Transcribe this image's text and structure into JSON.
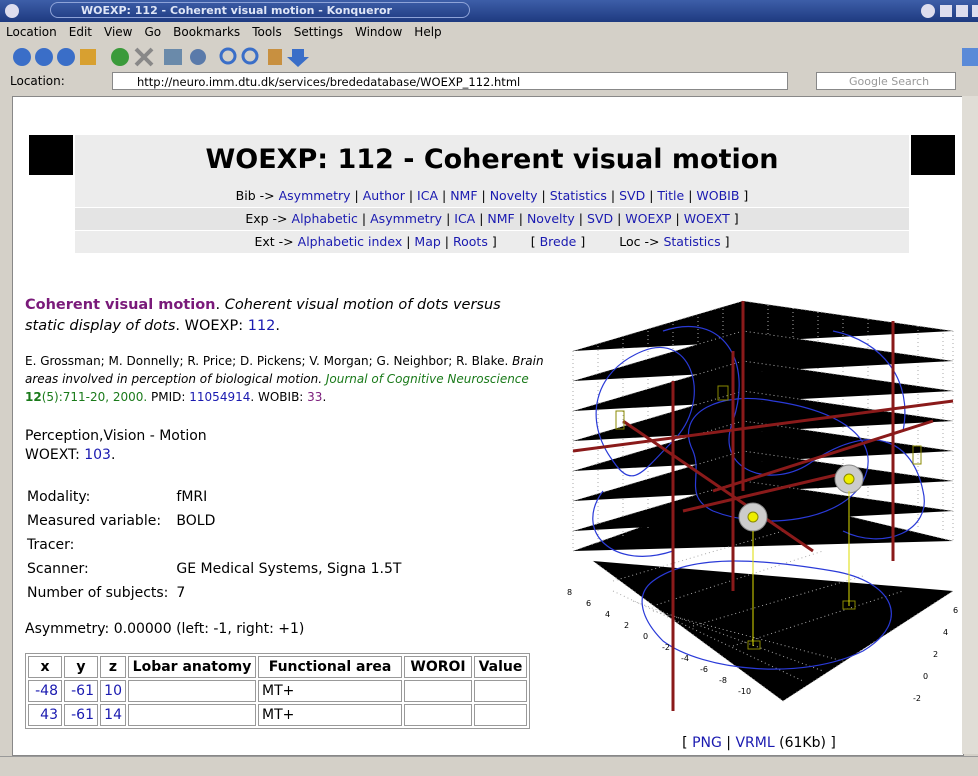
{
  "window": {
    "title": "WOEXP: 112 - Coherent visual motion - Konqueror",
    "menu": [
      "Location",
      "Edit",
      "View",
      "Go",
      "Bookmarks",
      "Tools",
      "Settings",
      "Window",
      "Help"
    ],
    "location_label": "Location:",
    "url": "http://neuro.imm.dtu.dk/services/brededatabase/WOEXP_112.html",
    "search_placeholder": "Google Search"
  },
  "page": {
    "heading": "WOEXP: 112 - Coherent visual motion",
    "nav": {
      "separator": "|",
      "rows": [
        [
          {
            "prefix": "Bib ->",
            "links": [
              "Asymmetry",
              "Author",
              "ICA",
              "NMF",
              "Novelty",
              "Statistics",
              "SVD",
              "Title",
              "WOBIB"
            ],
            "suffix": "]"
          }
        ],
        [
          {
            "prefix": "Exp ->",
            "links": [
              "Alphabetic",
              "Asymmetry",
              "ICA",
              "NMF",
              "Novelty",
              "SVD",
              "WOEXP",
              "WOEXT"
            ],
            "suffix": "]"
          }
        ],
        [
          {
            "prefix": "Ext ->",
            "links": [
              "Alphabetic index",
              "Map",
              "Roots"
            ],
            "suffix": "]"
          },
          {
            "prefix": "[",
            "links": [
              "Brede"
            ],
            "suffix": "]"
          },
          {
            "prefix": "Loc ->",
            "links": [
              "Statistics"
            ],
            "suffix": "]"
          }
        ]
      ]
    },
    "description": [
      {
        "text": "Coherent visual motion",
        "style": "title"
      },
      {
        "text": ". "
      },
      {
        "text": "Coherent visual motion of dots versus static display of dots",
        "style": "italic"
      },
      {
        "text": ". WOEXP: "
      },
      {
        "text": "112",
        "style": "link"
      },
      {
        "text": "."
      }
    ],
    "reference": [
      {
        "text": "E. Grossman; M. Donnelly; R. Price; D. Pickens; V. Morgan; G. Neighbor; R. Blake. "
      },
      {
        "text": "Brain areas involved in perception of biological motion.",
        "style": "italic"
      },
      {
        "text": " "
      },
      {
        "text": "Journal of Cognitive Neuroscience",
        "style": "journal"
      },
      {
        "text": " "
      },
      {
        "text": "12",
        "style": "journal-bold"
      },
      {
        "text": "(5):711-20, 2000.",
        "style": "journal-plain"
      },
      {
        "text": " PMID: "
      },
      {
        "text": "11054914",
        "style": "link"
      },
      {
        "text": ". WOBIB: "
      },
      {
        "text": "33",
        "style": "visited"
      },
      {
        "text": "."
      }
    ],
    "category": [
      {
        "text": "Perception,Vision - Motion"
      },
      {
        "text": "WOEXT: ",
        "style": "newline"
      },
      {
        "text": "103",
        "style": "link"
      },
      {
        "text": "."
      }
    ],
    "properties": [
      [
        "Modality:",
        "fMRI"
      ],
      [
        "Measured variable:",
        "BOLD"
      ],
      [
        "Tracer:"
      ],
      [
        "Scanner:",
        "GE Medical Systems, Signa 1.5T"
      ],
      [
        "Number of subjects:",
        "7"
      ]
    ],
    "asymmetry": "Asymmetry: 0.00000 (left: -1, right: +1)",
    "coords": {
      "columns": [
        "x",
        "y",
        "z",
        "Lobar anatomy",
        "Functional area",
        "WOROI",
        "Value"
      ],
      "rows": [
        [
          -48,
          -61,
          10,
          null,
          "MT+",
          null,
          null
        ],
        [
          43,
          -61,
          14,
          null,
          "MT+",
          null,
          null
        ]
      ]
    },
    "figure": {
      "left_axis": [
        8,
        6,
        4,
        2,
        0,
        -2,
        -4,
        -6,
        -8,
        -10
      ],
      "right_axis": [
        -2,
        0,
        2,
        4,
        6
      ]
    },
    "caption": [
      {
        "text": "[ "
      },
      {
        "text": "PNG",
        "style": "link"
      },
      {
        "text": " | "
      },
      {
        "text": "VRML",
        "style": "link"
      },
      {
        "text": " (61Kb) ]"
      }
    ]
  }
}
